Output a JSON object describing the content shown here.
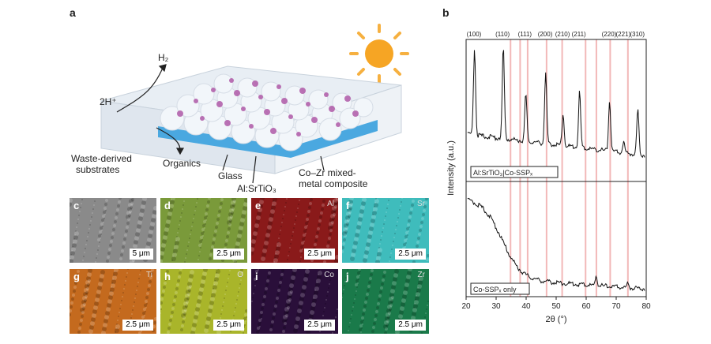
{
  "panel_a": {
    "letter": "a",
    "labels": {
      "h2": "H₂",
      "h_plus": "2H⁺",
      "waste_line1": "Waste-derived",
      "waste_line2": "substrates",
      "organics": "Organics",
      "glass": "Glass",
      "al_srtio3": "Al:SrTiO₃",
      "coZr_line1": "Co–Zr mixed-",
      "coZr_line2": "metal composite"
    }
  },
  "micrographs": [
    {
      "letter": "c",
      "element": "",
      "scale": "5 μm",
      "color": "#8a8a8a"
    },
    {
      "letter": "d",
      "element": "",
      "scale": "2.5 μm",
      "color": "#7a9a3a"
    },
    {
      "letter": "e",
      "element": "Al",
      "scale": "2.5 μm",
      "color": "#8a1a1a"
    },
    {
      "letter": "f",
      "element": "Sr",
      "scale": "2.5 μm",
      "color": "#3fbcbc"
    },
    {
      "letter": "g",
      "element": "Ti",
      "scale": "2.5 μm",
      "color": "#c46a1e"
    },
    {
      "letter": "h",
      "element": "O",
      "scale": "2.5 μm",
      "color": "#a9b52a"
    },
    {
      "letter": "i",
      "element": "Co",
      "scale": "2.5 μm",
      "color": "#2a0f3a"
    },
    {
      "letter": "j",
      "element": "Zr",
      "scale": "2.5 μm",
      "color": "#1a7a4a"
    }
  ],
  "chart_data": {
    "type": "line",
    "panel_letter": "b",
    "xlabel": "2θ (°)",
    "ylabel": "Intensity (a.u.)",
    "xlim": [
      20,
      80
    ],
    "xticks": [
      20,
      30,
      40,
      50,
      60,
      70,
      80
    ],
    "peak_labels": [
      {
        "label": "(100)",
        "x": 22.8
      },
      {
        "label": "(110)",
        "x": 32.4
      },
      {
        "label": "(111)",
        "x": 39.9
      },
      {
        "label": "(200)",
        "x": 46.5
      },
      {
        "label": "(210)",
        "x": 52.3
      },
      {
        "label": "(211)",
        "x": 57.8
      },
      {
        "label": "(220)",
        "x": 67.8
      },
      {
        "label": "(221)",
        "x": 72.5
      },
      {
        "label": "(310)",
        "x": 77.2
      }
    ],
    "reference_lines_x": [
      34.8,
      38.0,
      40.5,
      46.8,
      52.0,
      59.8,
      63.4,
      68.0,
      73.9
    ],
    "series": [
      {
        "name": "Al:SrTiO₃|Co-SSPₓ",
        "peaks": [
          {
            "x": 22.8,
            "y": 0.95
          },
          {
            "x": 32.4,
            "y": 1.0
          },
          {
            "x": 39.9,
            "y": 0.52
          },
          {
            "x": 46.5,
            "y": 0.78
          },
          {
            "x": 52.3,
            "y": 0.35
          },
          {
            "x": 57.8,
            "y": 0.62
          },
          {
            "x": 67.8,
            "y": 0.55
          },
          {
            "x": 72.5,
            "y": 0.12
          },
          {
            "x": 77.2,
            "y": 0.5
          }
        ]
      },
      {
        "name": "Co-SSPₓ only",
        "peaks": [
          {
            "x": 63.4,
            "y": 0.12
          },
          {
            "x": 73.9,
            "y": 0.05
          }
        ]
      }
    ]
  }
}
